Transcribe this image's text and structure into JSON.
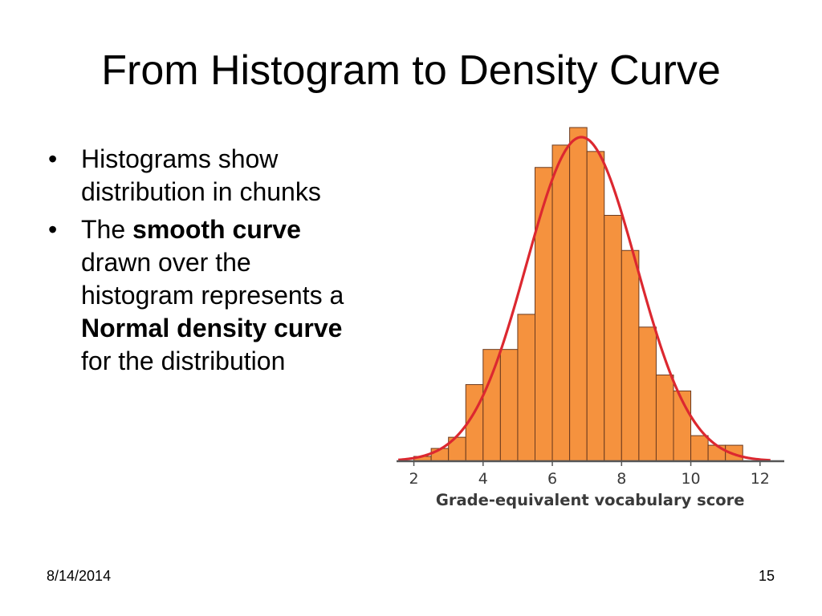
{
  "slide": {
    "title": "From Histogram to Density Curve",
    "bullets": [
      [
        {
          "text": "Histograms show distribution in chunks",
          "bold": false
        }
      ],
      [
        {
          "text": "The ",
          "bold": false
        },
        {
          "text": "smooth curve",
          "bold": true
        },
        {
          "text": " drawn over the histogram represents a ",
          "bold": false
        },
        {
          "text": "Normal density curve",
          "bold": true
        },
        {
          "text": " for the distribution",
          "bold": false
        }
      ]
    ],
    "bullet_marker": "•",
    "footer": {
      "date": "8/14/2014",
      "page": "15"
    }
  },
  "chart_data": {
    "type": "bar",
    "title": "",
    "xlabel": "Grade-equivalent vocabulary score",
    "ylabel": "",
    "xticks": [
      2,
      4,
      6,
      8,
      10,
      12
    ],
    "xlim": [
      1.5,
      12.7
    ],
    "ylim": [
      0,
      21
    ],
    "bin_width": 0.5,
    "bins": [
      {
        "x0": 2.0,
        "value": 0.3
      },
      {
        "x0": 2.5,
        "value": 0.8
      },
      {
        "x0": 3.0,
        "value": 1.5
      },
      {
        "x0": 3.5,
        "value": 4.8
      },
      {
        "x0": 4.0,
        "value": 7.0
      },
      {
        "x0": 4.5,
        "value": 7.0
      },
      {
        "x0": 5.0,
        "value": 9.2
      },
      {
        "x0": 5.5,
        "value": 18.4
      },
      {
        "x0": 6.0,
        "value": 19.8
      },
      {
        "x0": 6.5,
        "value": 20.9
      },
      {
        "x0": 7.0,
        "value": 19.4
      },
      {
        "x0": 7.5,
        "value": 15.4
      },
      {
        "x0": 8.0,
        "value": 13.2
      },
      {
        "x0": 8.5,
        "value": 8.4
      },
      {
        "x0": 9.0,
        "value": 5.4
      },
      {
        "x0": 9.5,
        "value": 4.4
      },
      {
        "x0": 10.0,
        "value": 1.6
      },
      {
        "x0": 10.5,
        "value": 1.0
      },
      {
        "x0": 11.0,
        "value": 1.0
      }
    ],
    "density_curve": {
      "mean": 6.84,
      "sd": 1.59,
      "peak": 20.3
    },
    "colors": {
      "bar_fill": "#f5923e",
      "bar_stroke": "#6b3a1f",
      "curve": "#dc2830",
      "axis": "#555555",
      "text": "#3a3a3a"
    }
  }
}
